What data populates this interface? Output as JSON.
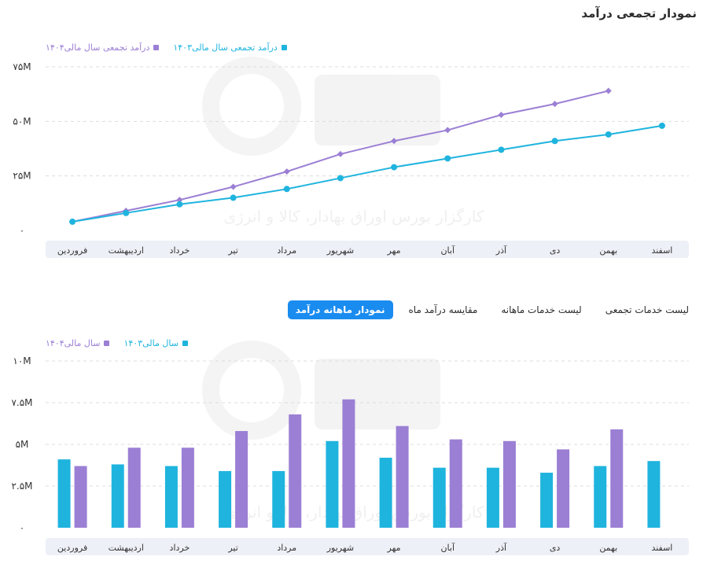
{
  "title": "نمودار تجمعی درآمد",
  "tabs": [
    {
      "label": "نمودار ماهانه درآمد",
      "active": true
    },
    {
      "label": "مقایسه درآمد ماه",
      "active": false
    },
    {
      "label": "لیست خدمات ماهانه",
      "active": false
    },
    {
      "label": "لیست خدمات تجمعی",
      "active": false
    }
  ],
  "watermark_text": "کارگزار بورس اوراق بهادار، کالا و انرژی",
  "colors": {
    "series_1404": "#9b7fd4",
    "series_1403": "#1fb4de",
    "axis_band": "#eef0f7",
    "grid": "#dcdcdc"
  },
  "chart_data": [
    {
      "type": "line",
      "title": "نمودار تجمعی درآمد",
      "categories": [
        "فروردین",
        "اردیبهشت",
        "خرداد",
        "تیر",
        "مرداد",
        "شهریور",
        "مهر",
        "آبان",
        "آذر",
        "دی",
        "بهمن",
        "اسفند"
      ],
      "y_ticks": [
        "۰",
        "۲۵M",
        "۵۰M",
        "۷۵M"
      ],
      "ylim": [
        0,
        75
      ],
      "grid": true,
      "legend_position": "top-left",
      "series": [
        {
          "name": "درآمد تجمعی سال مالی۱۴۰۴",
          "color": "#9b7fd4",
          "marker": "diamond",
          "values": [
            4,
            9,
            14,
            20,
            27,
            35,
            41,
            46,
            53,
            58,
            64,
            null
          ]
        },
        {
          "name": "درآمد تجمعی سال مالی۱۴۰۳",
          "color": "#1fb4de",
          "marker": "circle",
          "values": [
            4,
            8,
            12,
            15,
            19,
            24,
            29,
            33,
            37,
            41,
            44,
            48
          ]
        }
      ]
    },
    {
      "type": "bar",
      "categories": [
        "فروردین",
        "اردیبهشت",
        "خرداد",
        "تیر",
        "مرداد",
        "شهریور",
        "مهر",
        "آبان",
        "آذر",
        "دی",
        "بهمن",
        "اسفند"
      ],
      "y_ticks": [
        "۰",
        "۲.۵M",
        "۵M",
        "۷.۵M",
        "۱۰M"
      ],
      "ylim": [
        0,
        10
      ],
      "grid": true,
      "legend_position": "top-left",
      "series": [
        {
          "name": "سال مالی۱۴۰۳",
          "color": "#1fb4de",
          "values": [
            4.1,
            3.8,
            3.7,
            3.4,
            3.4,
            5.2,
            4.2,
            3.6,
            3.6,
            3.3,
            3.7,
            4.0
          ]
        },
        {
          "name": "سال مالی۱۴۰۴",
          "color": "#9b7fd4",
          "values": [
            3.7,
            4.8,
            4.8,
            5.8,
            6.8,
            7.7,
            6.1,
            5.3,
            5.2,
            4.7,
            5.9,
            null
          ]
        }
      ]
    }
  ]
}
